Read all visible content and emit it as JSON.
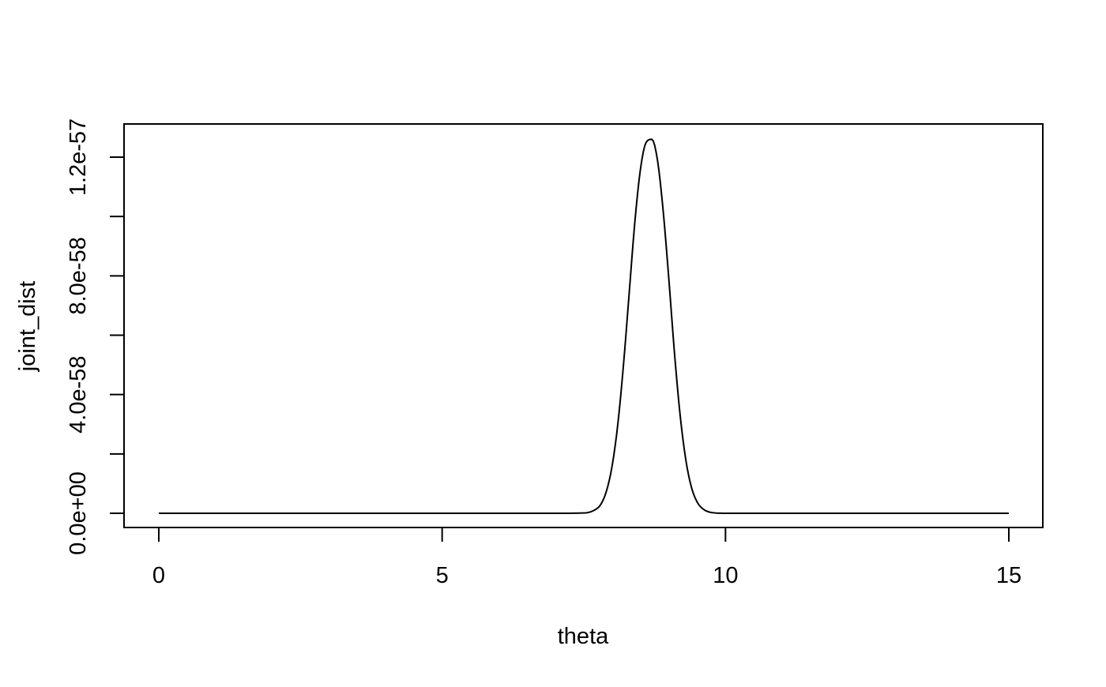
{
  "chart_data": {
    "type": "line",
    "title": "",
    "xlabel": "theta",
    "ylabel": "joint_dist",
    "xlim": [
      0,
      15
    ],
    "ylim": [
      0,
      1.26e-57
    ],
    "x_ticks": [
      0,
      5,
      10,
      15
    ],
    "x_tick_labels": [
      "0",
      "5",
      "10",
      "15"
    ],
    "y_ticks": [
      0,
      2e-58,
      4e-58,
      6e-58,
      8e-58,
      1e-57,
      1.2e-57
    ],
    "y_tick_labels": [
      "0.0e+00",
      "",
      "4.0e-58",
      "",
      "8.0e-58",
      "",
      "1.2e-57"
    ],
    "grid": false,
    "legend": "none",
    "line_color": "#000000",
    "series": [
      {
        "x": [
          0,
          7.0,
          7.5,
          7.7,
          7.8,
          7.9,
          8.0,
          8.1,
          8.2,
          8.3,
          8.4,
          8.5,
          8.6,
          8.7,
          8.8,
          8.9,
          9.0,
          9.1,
          9.2,
          9.3,
          9.4,
          9.5,
          9.6,
          9.7,
          9.8,
          10.0,
          10.5,
          15
        ],
        "y": [
          0,
          0,
          1e-60,
          1.2e-59,
          3e-59,
          7.5e-59,
          1.6e-58,
          3e-58,
          5e-58,
          7.4e-58,
          9.8e-58,
          1.16e-57,
          1.25e-57,
          1.26e-57,
          1.19e-57,
          1.02e-57,
          7.9e-58,
          5.4e-58,
          3.3e-58,
          1.8e-58,
          8.7e-59,
          3.8e-59,
          1.5e-59,
          5e-60,
          1.5e-60,
          1e-61,
          0,
          0
        ]
      }
    ]
  }
}
